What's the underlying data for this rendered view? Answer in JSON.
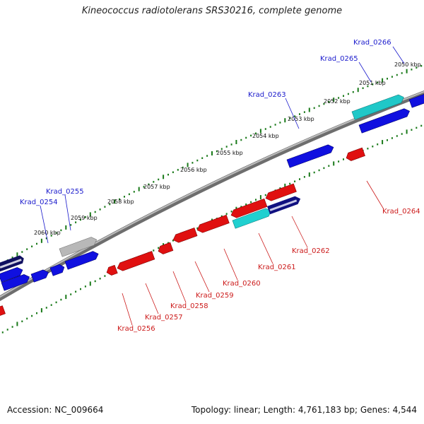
{
  "title": "Kineococcus radiotolerans SRS30216, complete genome",
  "footer": {
    "accession": "Accession: NC_009664",
    "summary": "Topology: linear; Length: 4,761,183 bp; Genes: 4,544"
  },
  "colors": {
    "forward_gene": "#1010e0",
    "reverse_gene": "#e01010",
    "highlight_gene": "#20c8c8",
    "pseudo_gene": "#b0b0b0",
    "rna_gene": "#101060",
    "backbone": "#808080",
    "tick": "#1a7a1a",
    "label_forward": "#1a1acc",
    "label_reverse": "#cc1a1a"
  },
  "scale_labels": [
    "2050 kbp",
    "2051 kbp",
    "2052 kbp",
    "2053 kbp",
    "2054 kbp",
    "2055 kbp",
    "2056 kbp",
    "2057 kbp",
    "2058 kbp",
    "2059 kbp",
    "2060 kbp"
  ],
  "forward_labels": [
    "Krad_0266",
    "Krad_0265",
    "Krad_0263",
    "Krad_0255",
    "Krad_0254"
  ],
  "reverse_labels": [
    "Krad_0264",
    "Krad_0262",
    "Krad_0261",
    "Krad_0260",
    "Krad_0259",
    "Krad_0258",
    "Krad_0257",
    "Krad_0256"
  ]
}
